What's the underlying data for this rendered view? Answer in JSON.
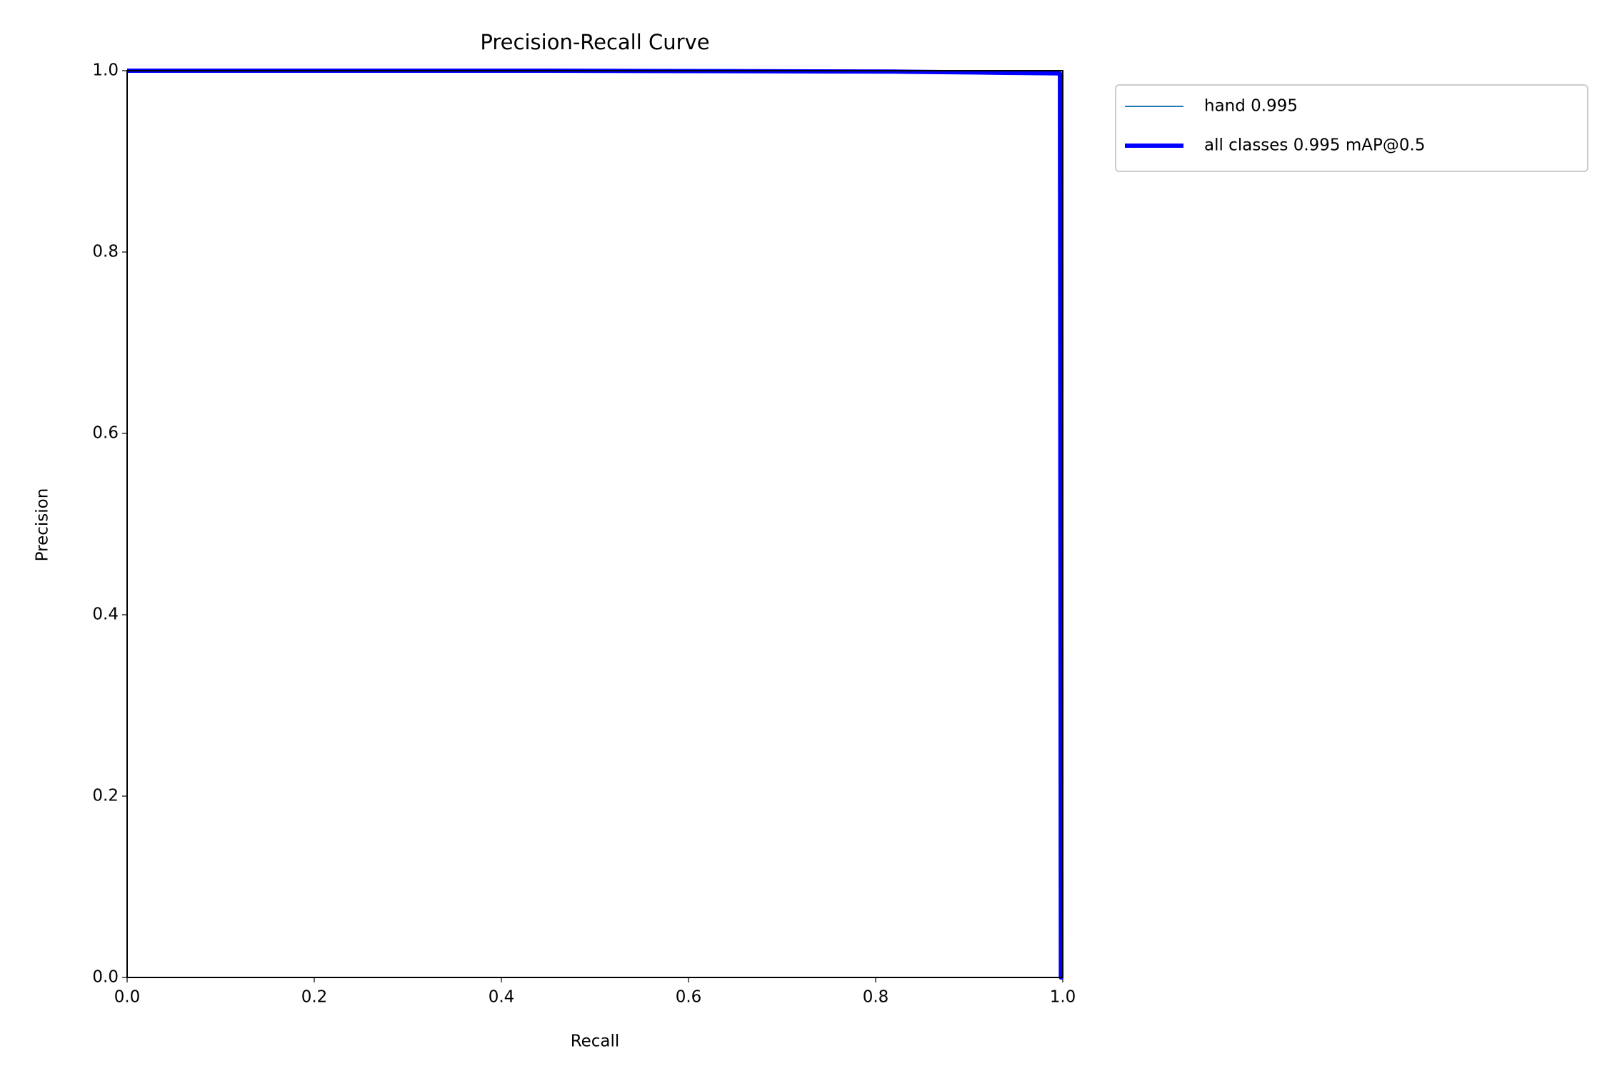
{
  "chart_data": {
    "type": "line",
    "title": "Precision-Recall Curve",
    "x_label": "Recall",
    "y_label": "Precision",
    "x": [
      0,
      0.45,
      0.82,
      0.91,
      0.997,
      0.998,
      1.0
    ],
    "series": [
      {
        "name": "hand 0.995",
        "color": "#1f77b4",
        "values": [
          1.0,
          1.0,
          0.999,
          0.998,
          0.997,
          0.0,
          0.0
        ]
      },
      {
        "name": "all classes 0.995 mAP@0.5",
        "color": "#0000ff",
        "values": [
          1.0,
          1.0,
          0.999,
          0.998,
          0.997,
          0.0,
          0.0
        ]
      }
    ],
    "xlim": [
      0,
      1
    ],
    "ylim": [
      0,
      1
    ],
    "xticks": [
      {
        "value": 0,
        "label": "0.0"
      },
      0.2,
      0.4,
      0.6,
      0.8,
      {
        "value": 1,
        "label": "1.0"
      }
    ],
    "yticks": [
      {
        "value": 0,
        "label": "0.0"
      },
      0.2,
      0.4,
      0.6,
      0.8,
      {
        "value": 1,
        "label": "1.0"
      }
    ],
    "grid": false,
    "legend": "outside-upper-right"
  }
}
